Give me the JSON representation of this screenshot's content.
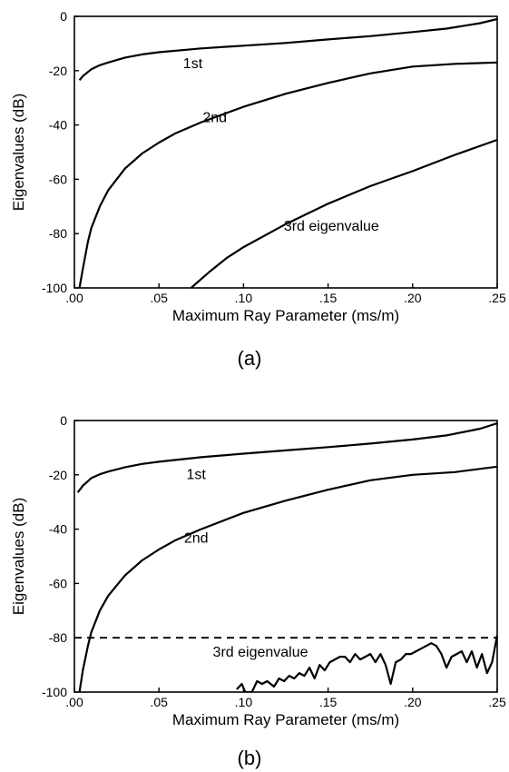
{
  "chart_data": [
    {
      "type": "line",
      "panel_label": "(a)",
      "xlabel": "Maximum Ray Parameter  (ms/m)",
      "ylabel": "Eigenvalues  (dB)",
      "xlim": [
        0,
        0.25
      ],
      "ylim": [
        -100,
        0
      ],
      "x_ticks": [
        0,
        0.05,
        0.1,
        0.15,
        0.2,
        0.25
      ],
      "x_tick_labels": [
        ".00",
        ".05",
        ".10",
        ".15",
        ".20",
        ".25"
      ],
      "y_ticks": [
        0,
        -20,
        -40,
        -60,
        -80,
        -100
      ],
      "y_tick_labels": [
        "0",
        "-20",
        "-40",
        "-60",
        "-80",
        "-100"
      ],
      "grid": false,
      "series": [
        {
          "name": "1st",
          "x": [
            0.003,
            0.005,
            0.01,
            0.015,
            0.02,
            0.03,
            0.04,
            0.05,
            0.075,
            0.1,
            0.125,
            0.15,
            0.175,
            0.2,
            0.22,
            0.24,
            0.25
          ],
          "y": [
            -23.5,
            -22,
            -19.5,
            -18,
            -17,
            -15.2,
            -14,
            -13.2,
            -11.8,
            -10.8,
            -9.8,
            -8.5,
            -7.3,
            -5.8,
            -4.5,
            -2.5,
            -1
          ]
        },
        {
          "name": "2nd",
          "x": [
            0.003,
            0.005,
            0.008,
            0.01,
            0.015,
            0.02,
            0.03,
            0.04,
            0.05,
            0.06,
            0.075,
            0.1,
            0.125,
            0.15,
            0.175,
            0.2,
            0.225,
            0.25
          ],
          "y": [
            -100,
            -93,
            -83,
            -78,
            -70,
            -64,
            -56,
            -50.5,
            -46.5,
            -43,
            -39,
            -33.3,
            -28.5,
            -24.5,
            -21,
            -18.5,
            -17.5,
            -17
          ]
        },
        {
          "name": "3rd eigenvalue",
          "x": [
            0.069,
            0.08,
            0.09,
            0.1,
            0.125,
            0.15,
            0.175,
            0.2,
            0.225,
            0.25
          ],
          "y": [
            -100,
            -94,
            -89,
            -85,
            -76.5,
            -69,
            -62.5,
            -57,
            -51,
            -45.5
          ]
        }
      ],
      "annotations": [
        {
          "text": "1st",
          "x": 0.07,
          "y": -19
        },
        {
          "text": "2nd",
          "x": 0.083,
          "y": -39
        },
        {
          "text": "3rd eigenvalue",
          "x": 0.152,
          "y": -79
        }
      ]
    },
    {
      "type": "line",
      "panel_label": "(b)",
      "xlabel": "Maximum Ray Parameter  (ms/m)",
      "ylabel": "Eigenvalues  (dB)",
      "xlim": [
        0,
        0.25
      ],
      "ylim": [
        -100,
        0
      ],
      "x_ticks": [
        0,
        0.05,
        0.1,
        0.15,
        0.2,
        0.25
      ],
      "x_tick_labels": [
        ".00",
        ".05",
        ".10",
        ".15",
        ".20",
        ".25"
      ],
      "y_ticks": [
        0,
        -20,
        -40,
        -60,
        -80,
        -100
      ],
      "y_tick_labels": [
        "0",
        "-20",
        "-40",
        "-60",
        "-80",
        "-100"
      ],
      "grid": false,
      "series": [
        {
          "name": "1st",
          "x": [
            0.002,
            0.005,
            0.01,
            0.015,
            0.02,
            0.03,
            0.04,
            0.05,
            0.075,
            0.1,
            0.125,
            0.15,
            0.175,
            0.2,
            0.22,
            0.24,
            0.25
          ],
          "y": [
            -26.5,
            -24,
            -21.2,
            -19.8,
            -18.8,
            -17.2,
            -16,
            -15.2,
            -13.5,
            -12.2,
            -11,
            -9.8,
            -8.5,
            -7,
            -5.5,
            -3,
            -1
          ]
        },
        {
          "name": "2nd",
          "x": [
            0.003,
            0.005,
            0.008,
            0.01,
            0.015,
            0.02,
            0.03,
            0.04,
            0.05,
            0.06,
            0.075,
            0.1,
            0.125,
            0.15,
            0.175,
            0.2,
            0.225,
            0.25
          ],
          "y": [
            -100,
            -92,
            -83,
            -78,
            -70,
            -64.5,
            -57,
            -51.5,
            -47.5,
            -44,
            -40,
            -34,
            -29.5,
            -25.5,
            -22,
            -20,
            -19,
            -17
          ]
        },
        {
          "name": "3rd eigenvalue",
          "x": [
            0.096,
            0.099,
            0.101,
            0.105,
            0.108,
            0.111,
            0.114,
            0.118,
            0.121,
            0.124,
            0.127,
            0.13,
            0.133,
            0.136,
            0.139,
            0.142,
            0.145,
            0.148,
            0.151,
            0.154,
            0.157,
            0.16,
            0.163,
            0.166,
            0.169,
            0.172,
            0.175,
            0.178,
            0.181,
            0.184,
            0.187,
            0.19,
            0.193,
            0.196,
            0.199,
            0.202,
            0.205,
            0.208,
            0.211,
            0.214,
            0.217,
            0.22,
            0.223,
            0.226,
            0.229,
            0.232,
            0.235,
            0.238,
            0.241,
            0.244,
            0.247,
            0.25
          ],
          "y": [
            -99,
            -97,
            -100,
            -100,
            -96,
            -97,
            -96,
            -98,
            -95,
            -96,
            -94,
            -95,
            -93,
            -94,
            -91,
            -95,
            -90,
            -92,
            -89,
            -88,
            -87,
            -87,
            -89,
            -86,
            -88,
            -87,
            -86,
            -89,
            -86,
            -90,
            -97,
            -89,
            -88,
            -86,
            -86,
            -85,
            -84,
            -83,
            -82,
            -83,
            -86,
            -91,
            -87,
            -86,
            -85,
            -89,
            -85,
            -91,
            -86,
            -93,
            -89,
            -79
          ]
        },
        {
          "name": "",
          "style": "dashed",
          "x": [
            0,
            0.25
          ],
          "y": [
            -80,
            -80
          ]
        }
      ],
      "annotations": [
        {
          "text": "1st",
          "x": 0.072,
          "y": -21.5
        },
        {
          "text": "2nd",
          "x": 0.072,
          "y": -45
        },
        {
          "text": "3rd eigenvalue",
          "x": 0.11,
          "y": -87
        }
      ]
    }
  ]
}
